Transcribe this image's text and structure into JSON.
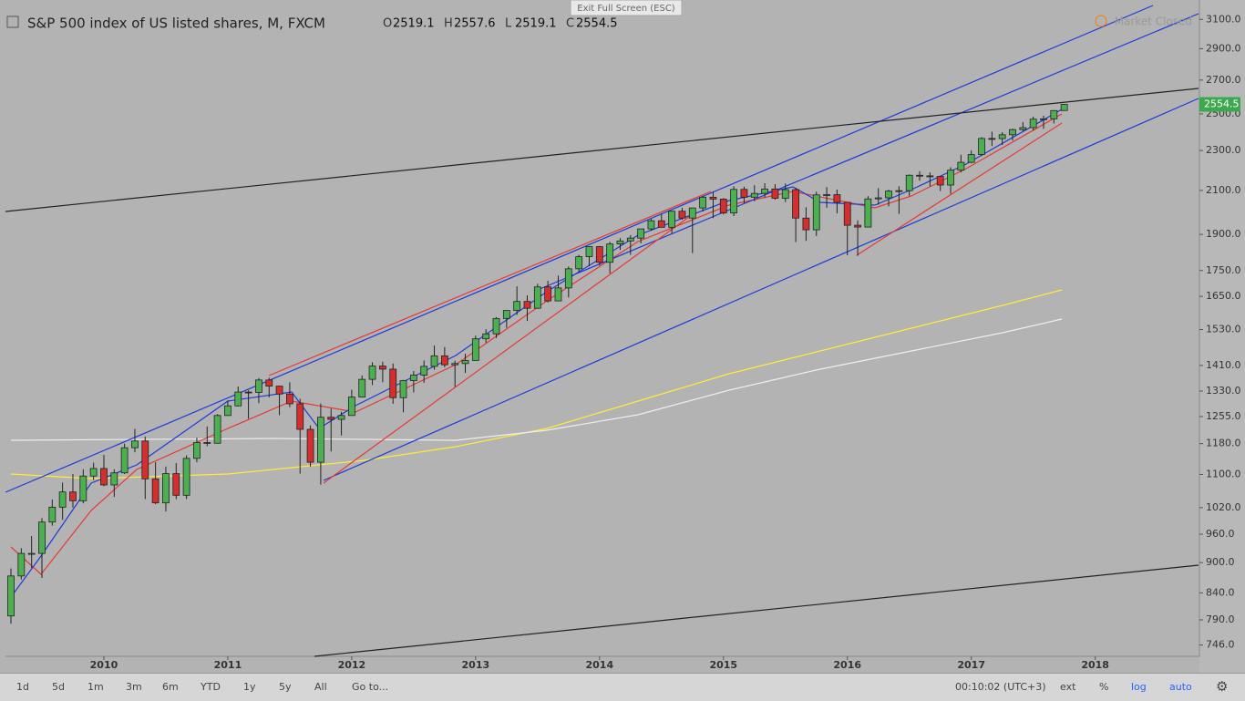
{
  "chart_data": {
    "type": "candlestick",
    "title": "S&P 500 index of US listed shares, M, FXCM",
    "ohlc_labels": [
      "O",
      "H",
      "L",
      "C"
    ],
    "log": true,
    "ylim": [
      727,
      3240
    ],
    "yticks": [
      746,
      790,
      840,
      900,
      960,
      1020,
      1100,
      1180,
      1255,
      1330,
      1410,
      1530,
      1650,
      1750,
      1900,
      2100,
      2300,
      2500,
      2700,
      2900,
      3100
    ],
    "ytick_labels": [
      "746.0",
      "790.0",
      "840.0",
      "900.0",
      "960.0",
      "1020.0",
      "1100.0",
      "1180.0",
      "1255.0",
      "1330.0",
      "1410.0",
      "1530.0",
      "1650.0",
      "1750.0",
      "1900.0",
      "2100.0",
      "2300.0",
      "2500.0",
      "2700.0",
      "2900.0",
      "3100.0"
    ],
    "last_price_label": "2554.5",
    "up_color": "#4caf50",
    "down_color": "#d32f2f",
    "xticks": [
      {
        "value": "2010-01",
        "label": "2010"
      },
      {
        "value": "2011-01",
        "label": "2011"
      },
      {
        "value": "2012-01",
        "label": "2012"
      },
      {
        "value": "2013-01",
        "label": "2013"
      },
      {
        "value": "2014-01",
        "label": "2014"
      },
      {
        "value": "2015-01",
        "label": "2015"
      },
      {
        "value": "2016-01",
        "label": "2016"
      },
      {
        "value": "2017-01",
        "label": "2017"
      },
      {
        "value": "2018-01",
        "label": "2018"
      }
    ],
    "x": [
      "2009-04",
      "2009-05",
      "2009-06",
      "2009-07",
      "2009-08",
      "2009-09",
      "2009-10",
      "2009-11",
      "2009-12",
      "2010-01",
      "2010-02",
      "2010-03",
      "2010-04",
      "2010-05",
      "2010-06",
      "2010-07",
      "2010-08",
      "2010-09",
      "2010-10",
      "2010-11",
      "2010-12",
      "2011-01",
      "2011-02",
      "2011-03",
      "2011-04",
      "2011-05",
      "2011-06",
      "2011-07",
      "2011-08",
      "2011-09",
      "2011-10",
      "2011-11",
      "2011-12",
      "2012-01",
      "2012-02",
      "2012-03",
      "2012-04",
      "2012-05",
      "2012-06",
      "2012-07",
      "2012-08",
      "2012-09",
      "2012-10",
      "2012-11",
      "2012-12",
      "2013-01",
      "2013-02",
      "2013-03",
      "2013-04",
      "2013-05",
      "2013-06",
      "2013-07",
      "2013-08",
      "2013-09",
      "2013-10",
      "2013-11",
      "2013-12",
      "2014-01",
      "2014-02",
      "2014-03",
      "2014-04",
      "2014-05",
      "2014-06",
      "2014-07",
      "2014-08",
      "2014-09",
      "2014-10",
      "2014-11",
      "2014-12",
      "2015-01",
      "2015-02",
      "2015-03",
      "2015-04",
      "2015-05",
      "2015-06",
      "2015-07",
      "2015-08",
      "2015-09",
      "2015-10",
      "2015-11",
      "2015-12",
      "2016-01",
      "2016-02",
      "2016-03",
      "2016-04",
      "2016-05",
      "2016-06",
      "2016-07",
      "2016-08",
      "2016-09",
      "2016-10",
      "2016-11",
      "2016-12",
      "2017-01",
      "2017-02",
      "2017-03",
      "2017-04",
      "2017-05",
      "2017-06",
      "2017-07",
      "2017-08",
      "2017-09",
      "2017-10"
    ],
    "ohlc": [
      [
        797,
        888,
        783,
        873
      ],
      [
        873,
        930,
        866,
        919
      ],
      [
        919,
        956,
        889,
        919
      ],
      [
        919,
        996,
        869,
        987
      ],
      [
        987,
        1039,
        979,
        1021
      ],
      [
        1021,
        1080,
        992,
        1057
      ],
      [
        1057,
        1101,
        1020,
        1036
      ],
      [
        1036,
        1113,
        1030,
        1096
      ],
      [
        1096,
        1130,
        1086,
        1115
      ],
      [
        1115,
        1150,
        1071,
        1074
      ],
      [
        1074,
        1113,
        1045,
        1104
      ],
      [
        1104,
        1180,
        1101,
        1169
      ],
      [
        1169,
        1220,
        1157,
        1187
      ],
      [
        1187,
        1199,
        1040,
        1089
      ],
      [
        1089,
        1131,
        1028,
        1031
      ],
      [
        1031,
        1120,
        1011,
        1102
      ],
      [
        1102,
        1129,
        1040,
        1049
      ],
      [
        1049,
        1149,
        1040,
        1141
      ],
      [
        1141,
        1196,
        1131,
        1183
      ],
      [
        1183,
        1227,
        1173,
        1181
      ],
      [
        1181,
        1262,
        1181,
        1258
      ],
      [
        1258,
        1302,
        1257,
        1286
      ],
      [
        1286,
        1344,
        1284,
        1327
      ],
      [
        1327,
        1332,
        1249,
        1326
      ],
      [
        1326,
        1370,
        1294,
        1364
      ],
      [
        1364,
        1371,
        1311,
        1345
      ],
      [
        1345,
        1346,
        1259,
        1321
      ],
      [
        1321,
        1357,
        1282,
        1292
      ],
      [
        1292,
        1307,
        1102,
        1219
      ],
      [
        1219,
        1230,
        1120,
        1131
      ],
      [
        1131,
        1293,
        1075,
        1253
      ],
      [
        1253,
        1278,
        1159,
        1247
      ],
      [
        1247,
        1269,
        1202,
        1258
      ],
      [
        1258,
        1334,
        1258,
        1312
      ],
      [
        1312,
        1378,
        1312,
        1366
      ],
      [
        1366,
        1420,
        1348,
        1408
      ],
      [
        1408,
        1422,
        1357,
        1398
      ],
      [
        1398,
        1416,
        1292,
        1310
      ],
      [
        1310,
        1364,
        1267,
        1362
      ],
      [
        1362,
        1392,
        1326,
        1379
      ],
      [
        1379,
        1426,
        1355,
        1407
      ],
      [
        1407,
        1475,
        1396,
        1441
      ],
      [
        1441,
        1470,
        1404,
        1412
      ],
      [
        1412,
        1425,
        1343,
        1416
      ],
      [
        1416,
        1448,
        1386,
        1426
      ],
      [
        1426,
        1509,
        1426,
        1498
      ],
      [
        1498,
        1531,
        1485,
        1515
      ],
      [
        1515,
        1574,
        1501,
        1569
      ],
      [
        1569,
        1598,
        1536,
        1598
      ],
      [
        1598,
        1688,
        1582,
        1631
      ],
      [
        1631,
        1654,
        1560,
        1606
      ],
      [
        1606,
        1698,
        1604,
        1686
      ],
      [
        1686,
        1710,
        1627,
        1633
      ],
      [
        1633,
        1730,
        1633,
        1682
      ],
      [
        1682,
        1766,
        1646,
        1757
      ],
      [
        1757,
        1814,
        1746,
        1806
      ],
      [
        1806,
        1849,
        1767,
        1848
      ],
      [
        1848,
        1850,
        1770,
        1783
      ],
      [
        1783,
        1868,
        1738,
        1859
      ],
      [
        1859,
        1884,
        1834,
        1872
      ],
      [
        1872,
        1897,
        1814,
        1884
      ],
      [
        1884,
        1924,
        1862,
        1924
      ],
      [
        1924,
        1968,
        1916,
        1960
      ],
      [
        1960,
        1991,
        1930,
        1931
      ],
      [
        1931,
        2005,
        1905,
        2003
      ],
      [
        2003,
        2019,
        1965,
        1972
      ],
      [
        1972,
        2018,
        1821,
        2018
      ],
      [
        2018,
        2075,
        2002,
        2068
      ],
      [
        2068,
        2094,
        1972,
        2059
      ],
      [
        2059,
        2064,
        1988,
        1995
      ],
      [
        1995,
        2120,
        1981,
        2105
      ],
      [
        2105,
        2118,
        2040,
        2068
      ],
      [
        2068,
        2125,
        2049,
        2086
      ],
      [
        2086,
        2135,
        2067,
        2107
      ],
      [
        2107,
        2130,
        2056,
        2063
      ],
      [
        2063,
        2133,
        2045,
        2104
      ],
      [
        2104,
        2113,
        1867,
        1972
      ],
      [
        1972,
        2021,
        1872,
        1920
      ],
      [
        1920,
        2094,
        1893,
        2079
      ],
      [
        2079,
        2116,
        2019,
        2080
      ],
      [
        2080,
        2104,
        1993,
        2044
      ],
      [
        2044,
        2044,
        1812,
        1940
      ],
      [
        1940,
        1962,
        1810,
        1932
      ],
      [
        1932,
        2073,
        1932,
        2060
      ],
      [
        2060,
        2111,
        2033,
        2065
      ],
      [
        2065,
        2103,
        2025,
        2097
      ],
      [
        2097,
        2120,
        1991,
        2099
      ],
      [
        2099,
        2178,
        2074,
        2174
      ],
      [
        2174,
        2194,
        2147,
        2171
      ],
      [
        2171,
        2188,
        2120,
        2168
      ],
      [
        2168,
        2170,
        2097,
        2126
      ],
      [
        2126,
        2214,
        2084,
        2199
      ],
      [
        2199,
        2278,
        2188,
        2239
      ],
      [
        2239,
        2301,
        2234,
        2279
      ],
      [
        2279,
        2371,
        2271,
        2364
      ],
      [
        2364,
        2401,
        2323,
        2363
      ],
      [
        2363,
        2398,
        2329,
        2384
      ],
      [
        2384,
        2418,
        2353,
        2412
      ],
      [
        2412,
        2454,
        2405,
        2423
      ],
      [
        2423,
        2484,
        2407,
        2470
      ],
      [
        2470,
        2490,
        2417,
        2472
      ],
      [
        2472,
        2519,
        2446,
        2519
      ],
      [
        2519.1,
        2557.6,
        2519.1,
        2554.5
      ]
    ]
  },
  "ui": {
    "exit_fullscreen": "Exit Full Screen (ESC)",
    "market_status": "Market Closed",
    "ranges": [
      "1d",
      "5d",
      "1m",
      "3m",
      "6m",
      "YTD",
      "1y",
      "5y",
      "All",
      "Go to..."
    ],
    "clock": "00:10:02 (UTC+3)",
    "options": [
      "ext",
      "%",
      "log",
      "auto"
    ]
  }
}
